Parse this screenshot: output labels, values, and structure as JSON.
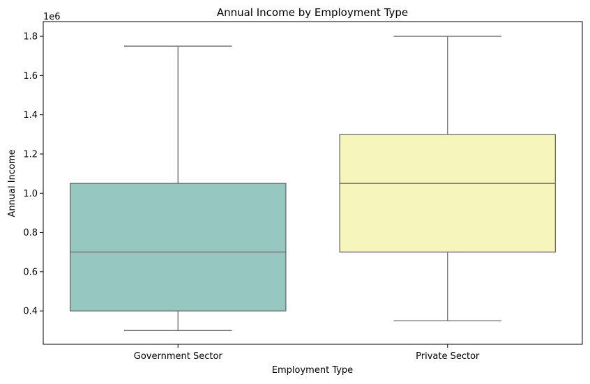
{
  "chart_data": {
    "type": "boxplot",
    "title": "Annual Income by Employment Type",
    "xlabel": "Employment Type",
    "ylabel": "Annual Income",
    "y_offset_label": "1e6",
    "y_scale": 1000000,
    "ylim": [
      230000,
      1875000
    ],
    "yticks": [
      400000,
      600000,
      800000,
      1000000,
      1200000,
      1400000,
      1600000,
      1800000
    ],
    "ytick_labels": [
      "0.4",
      "0.6",
      "0.8",
      "1.0",
      "1.2",
      "1.4",
      "1.6",
      "1.8"
    ],
    "grid": false,
    "legend": "none",
    "categories": [
      "Government Sector",
      "Private Sector"
    ],
    "boxes": [
      {
        "category": "Government Sector",
        "whisker_low": 300000,
        "q1": 400000,
        "median": 700000,
        "q3": 1050000,
        "whisker_high": 1750000,
        "color": "#96c8c0"
      },
      {
        "category": "Private Sector",
        "whisker_low": 350000,
        "q1": 700000,
        "median": 1050000,
        "q3": 1300000,
        "whisker_high": 1800000,
        "color": "#f6f6bc"
      }
    ],
    "line_color": "#6a6a6a"
  }
}
